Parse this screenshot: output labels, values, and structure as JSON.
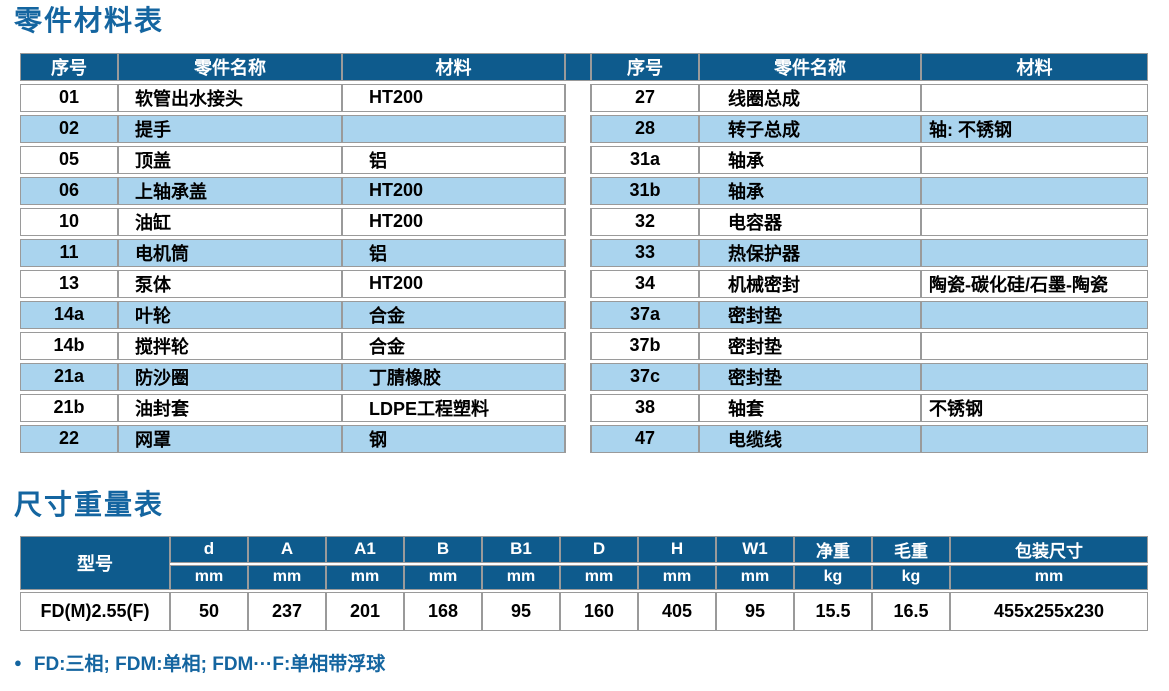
{
  "page": {
    "parts_table_title": "零件材料表",
    "dims_table_title": "尺寸重量表",
    "footnote": "FD:三相; FDM:单相; FDM···F:单相带浮球"
  },
  "colors": {
    "header_bg": "#0e5b8d",
    "row_alt_bg": "#aad4ee",
    "title_text": "#1465a0",
    "border": "#9a9a9a"
  },
  "parts_table": {
    "headers": [
      "序号",
      "零件名称",
      "材料"
    ],
    "left_rows": [
      {
        "no": "01",
        "name": "软管出水接头",
        "material": "HT200"
      },
      {
        "no": "02",
        "name": "提手",
        "material": ""
      },
      {
        "no": "05",
        "name": "顶盖",
        "material": "铝"
      },
      {
        "no": "06",
        "name": "上轴承盖",
        "material": "HT200"
      },
      {
        "no": "10",
        "name": "油缸",
        "material": "HT200"
      },
      {
        "no": "11",
        "name": "电机筒",
        "material": "铝"
      },
      {
        "no": "13",
        "name": "泵体",
        "material": "HT200"
      },
      {
        "no": "14a",
        "name": "叶轮",
        "material": "合金"
      },
      {
        "no": "14b",
        "name": "搅拌轮",
        "material": "合金"
      },
      {
        "no": "21a",
        "name": "防沙圈",
        "material": "丁腈橡胶"
      },
      {
        "no": "21b",
        "name": "油封套",
        "material": "LDPE工程塑料"
      },
      {
        "no": "22",
        "name": "网罩",
        "material": "钢"
      }
    ],
    "right_rows": [
      {
        "no": "27",
        "name": "线圈总成",
        "material": ""
      },
      {
        "no": "28",
        "name": "转子总成",
        "material": "轴: 不锈钢"
      },
      {
        "no": "31a",
        "name": "轴承",
        "material": ""
      },
      {
        "no": "31b",
        "name": "轴承",
        "material": ""
      },
      {
        "no": "32",
        "name": "电容器",
        "material": ""
      },
      {
        "no": "33",
        "name": "热保护器",
        "material": ""
      },
      {
        "no": "34",
        "name": "机械密封",
        "material": "陶瓷-碳化硅/石墨-陶瓷"
      },
      {
        "no": "37a",
        "name": "密封垫",
        "material": ""
      },
      {
        "no": "37b",
        "name": "密封垫",
        "material": ""
      },
      {
        "no": "37c",
        "name": "密封垫",
        "material": ""
      },
      {
        "no": "38",
        "name": "轴套",
        "material": "不锈钢"
      },
      {
        "no": "47",
        "name": "电缆线",
        "material": ""
      }
    ]
  },
  "dims_table": {
    "model_header": "型号",
    "columns": [
      {
        "label": "d",
        "unit": "mm"
      },
      {
        "label": "A",
        "unit": "mm"
      },
      {
        "label": "A1",
        "unit": "mm"
      },
      {
        "label": "B",
        "unit": "mm"
      },
      {
        "label": "B1",
        "unit": "mm"
      },
      {
        "label": "D",
        "unit": "mm"
      },
      {
        "label": "H",
        "unit": "mm"
      },
      {
        "label": "W1",
        "unit": "mm"
      },
      {
        "label": "净重",
        "unit": "kg"
      },
      {
        "label": "毛重",
        "unit": "kg"
      },
      {
        "label": "包装尺寸",
        "unit": "mm"
      }
    ],
    "rows": [
      {
        "model": "FD(M)2.55(F)",
        "values": [
          "50",
          "237",
          "201",
          "168",
          "95",
          "160",
          "405",
          "95",
          "15.5",
          "16.5",
          "455x255x230"
        ]
      }
    ]
  }
}
